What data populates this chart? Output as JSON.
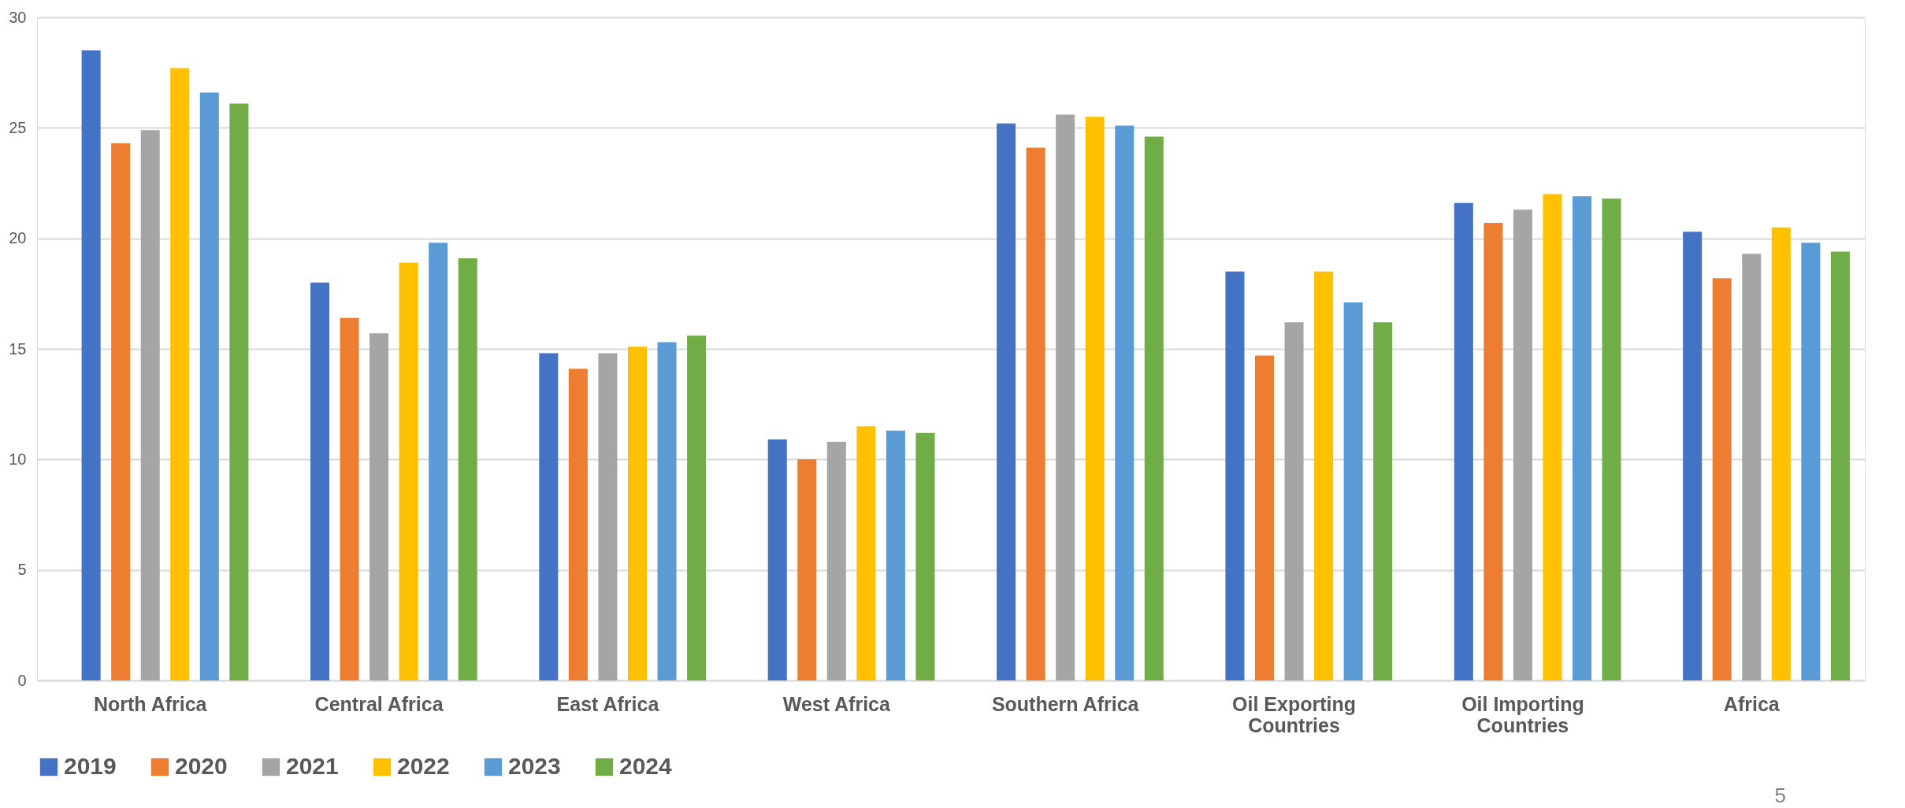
{
  "chart_data": {
    "type": "bar",
    "categories": [
      "North Africa",
      "Central Africa",
      "East Africa",
      "West Africa",
      "Southern Africa",
      "Oil Exporting Countries",
      "Oil Importing Countries",
      "Africa"
    ],
    "series": [
      {
        "name": "2019",
        "color": "#4472c4",
        "values": [
          28.5,
          18.0,
          14.8,
          10.9,
          25.2,
          18.5,
          21.6,
          20.3
        ]
      },
      {
        "name": "2020",
        "color": "#ed7d31",
        "values": [
          24.3,
          16.4,
          14.1,
          10.0,
          24.1,
          14.7,
          20.7,
          18.2
        ]
      },
      {
        "name": "2021",
        "color": "#a5a5a5",
        "values": [
          24.9,
          15.7,
          14.8,
          10.8,
          25.6,
          16.2,
          21.3,
          19.3
        ]
      },
      {
        "name": "2022",
        "color": "#ffc000",
        "values": [
          27.7,
          18.9,
          15.1,
          11.5,
          25.5,
          18.5,
          22.0,
          20.5
        ]
      },
      {
        "name": "2023",
        "color": "#5b9bd5",
        "values": [
          26.6,
          19.8,
          15.3,
          11.3,
          25.1,
          17.1,
          21.9,
          19.8
        ]
      },
      {
        "name": "2024",
        "color": "#70ad47",
        "values": [
          26.1,
          19.1,
          15.6,
          11.2,
          24.6,
          16.2,
          21.8,
          19.4
        ]
      }
    ],
    "ylim": [
      0,
      30
    ],
    "yticks": [
      0,
      5,
      10,
      15,
      20,
      25,
      30
    ],
    "grid": "y",
    "legend": "bottom",
    "annotations": [
      "5"
    ]
  }
}
